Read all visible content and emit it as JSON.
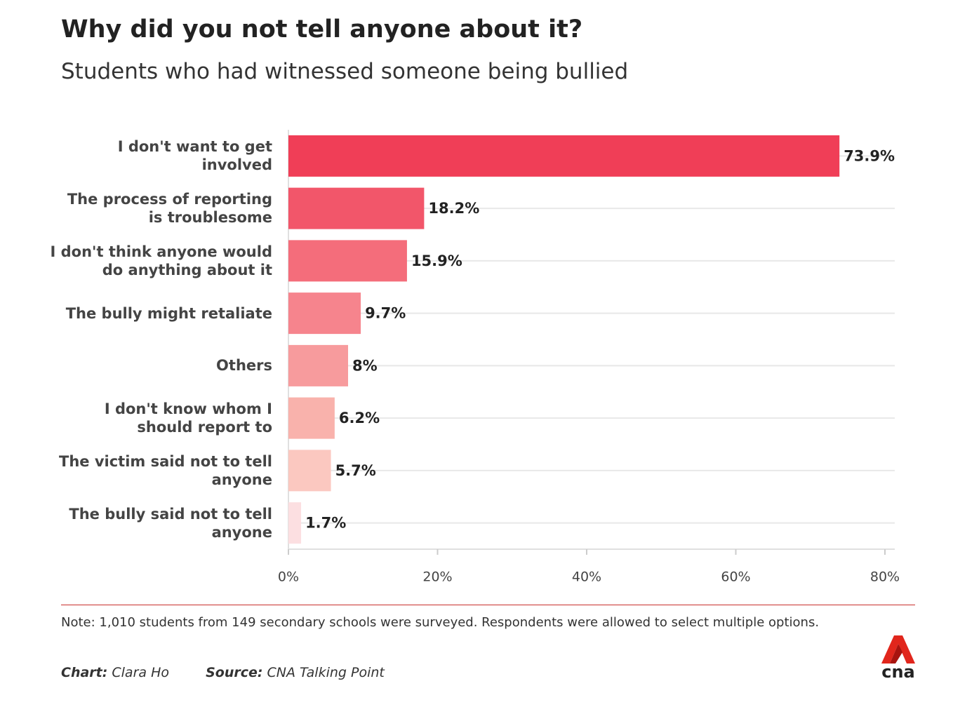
{
  "chart_data": {
    "type": "barh",
    "title": "Why did you not tell anyone about it?",
    "subtitle": "Students who had witnessed someone being bullied",
    "categories": [
      "I don't want to get\ninvolved",
      "The process of reporting\nis troublesome",
      "I don't think anyone would\ndo anything about it",
      "The bully might retaliate",
      "Others",
      "I don't know whom I\nshould report to",
      "The victim said not to tell\nanyone",
      "The bully said not to tell\nanyone"
    ],
    "values": [
      73.9,
      18.2,
      15.9,
      9.7,
      8,
      6.2,
      5.7,
      1.7
    ],
    "value_labels": [
      "73.9%",
      "18.2%",
      "15.9%",
      "9.7%",
      "8%",
      "6.2%",
      "5.7%",
      "1.7%"
    ],
    "colors": [
      "#f03e57",
      "#f2566a",
      "#f46d7b",
      "#f6848d",
      "#f79b9d",
      "#f9b2ac",
      "#fbc8c0",
      "#fcdfe1"
    ],
    "xlim": [
      0,
      80
    ],
    "xticks": [
      {
        "value": 0,
        "label": "0%"
      },
      {
        "value": 20,
        "label": "20%"
      },
      {
        "value": 40,
        "label": "40%"
      },
      {
        "value": 60,
        "label": "60%"
      },
      {
        "value": 80,
        "label": "80%"
      }
    ],
    "grid": true,
    "note": "Note: 1,010 students from 149 secondary schools were surveyed. Respondents were allowed to select multiple options.",
    "chart_credit_label": "Chart:",
    "chart_credit": "Clara Ho",
    "source_label": "Source:",
    "source": "CNA Talking Point",
    "logo": "cna"
  }
}
